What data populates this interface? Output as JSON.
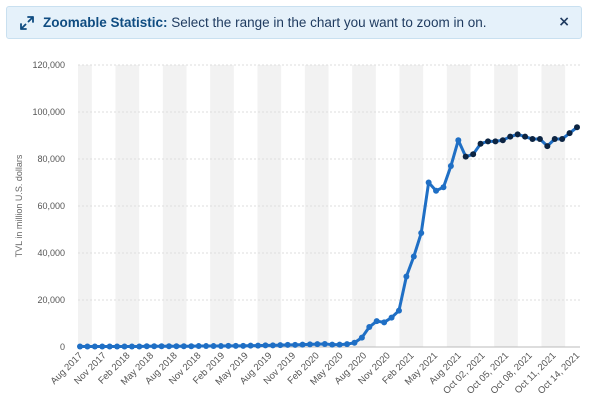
{
  "banner": {
    "title": "Zoomable Statistic:",
    "message": " Select the range in the chart you want to zoom in on.",
    "close_label": "×",
    "icon": "expand-arrows-icon"
  },
  "colors": {
    "line": "#1f6fc5",
    "point_early": "#1f6fc5",
    "point_late": "#0c2442",
    "band": "#f2f2f2",
    "grid": "#dddddd",
    "banner_bg": "#e5f1fa"
  },
  "chart_data": {
    "type": "line",
    "title": "",
    "xlabel": "",
    "ylabel": "TVL in million U.S. dollars",
    "ylim": [
      0,
      120000
    ],
    "y_ticks": [
      0,
      20000,
      40000,
      60000,
      80000,
      100000,
      120000
    ],
    "y_tick_labels": [
      "0",
      "20,000",
      "40,000",
      "60,000",
      "80,000",
      "100,000",
      "120,000"
    ],
    "x_tick_labels": [
      "Aug 2017",
      "Nov 2017",
      "Feb 2018",
      "May 2018",
      "Aug 2018",
      "Nov 2018",
      "Feb 2019",
      "May 2019",
      "Aug 2019",
      "Nov 2019",
      "Feb 2020",
      "May 2020",
      "Aug 2020",
      "Nov 2020",
      "Feb 2021",
      "May 2021",
      "Aug 2021",
      "Oct 02, 2021",
      "Oct 05, 2021",
      "Oct 08, 2021",
      "Oct 11, 2021",
      "Oct 14, 2021"
    ],
    "grid": "alternating vertical bands",
    "legend": "none",
    "series": [
      {
        "values": [
          200,
          200,
          200,
          200,
          200,
          200,
          200,
          200,
          200,
          300,
          300,
          300,
          300,
          300,
          300,
          300,
          400,
          400,
          400,
          400,
          500,
          500,
          500,
          600,
          600,
          700,
          700,
          800,
          900,
          900,
          1000,
          1100,
          1200,
          1300,
          1000,
          1000,
          1200,
          1800,
          4000,
          8500,
          11000,
          10500,
          12500,
          15500,
          30000,
          38500,
          48500,
          70000,
          66500,
          68000,
          77000,
          88000,
          81000,
          82000,
          86500,
          87500,
          87500,
          88000,
          89500,
          90500,
          89500,
          88500,
          88500,
          85500,
          88500,
          88500,
          91000,
          93500
        ]
      }
    ],
    "emphasized_from_index": 52
  }
}
